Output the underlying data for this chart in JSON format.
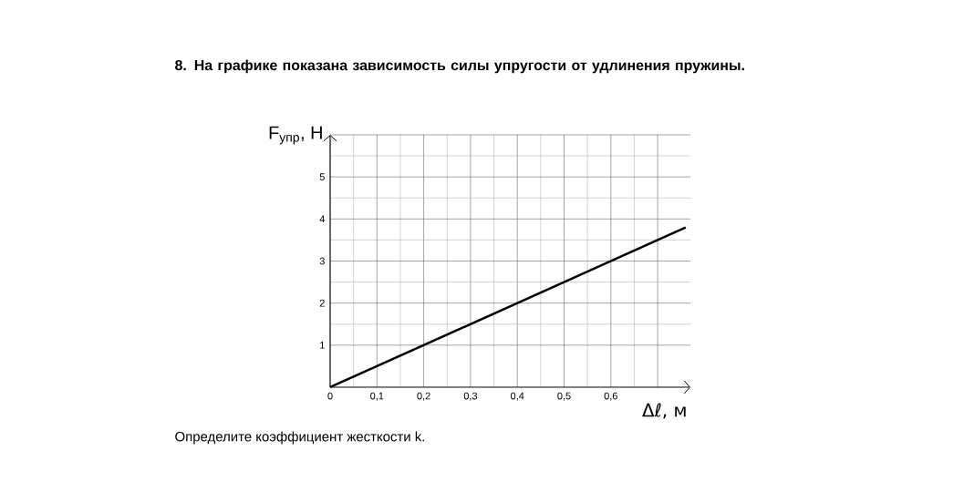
{
  "chart_data": {
    "type": "line",
    "title": "8. На графике показана зависимость силы упругости от удлинения пружины.",
    "xlabel": "Δℓ, м",
    "ylabel": "F$_{упр}$, Н",
    "annotations": [
      "Определите коэффициент жесткости k."
    ],
    "x": [
      0,
      0.76
    ],
    "values": [
      0,
      3.8
    ],
    "color": "#000000",
    "xlim": [
      0,
      0.77
    ],
    "ylim": [
      0,
      6
    ],
    "xticks": [
      {
        "value": 0,
        "label": "0"
      },
      {
        "value": 0.1,
        "label": "0,1"
      },
      {
        "value": 0.2,
        "label": "0,2"
      },
      {
        "value": 0.3,
        "label": "0,3"
      },
      {
        "value": 0.4,
        "label": "0,4"
      },
      {
        "value": 0.5,
        "label": "0,5"
      },
      {
        "value": 0.6,
        "label": "0,6"
      },
      {
        "value": 0.7,
        "label": null
      }
    ],
    "yticks": [
      1,
      2,
      3,
      4,
      5,
      {
        "value": 6,
        "label": null
      }
    ],
    "grid": true,
    "marker": "none",
    "line_style": "solid"
  }
}
